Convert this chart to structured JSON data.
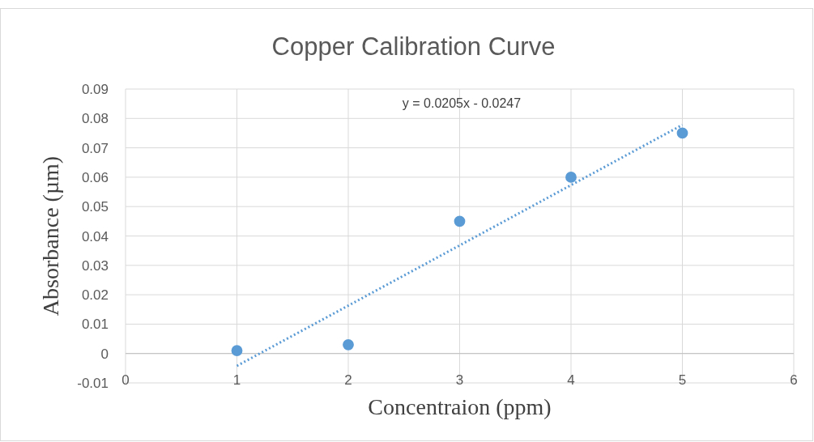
{
  "chart_data": {
    "type": "scatter",
    "title": "Copper Calibration Curve",
    "xlabel": "Concentraion (ppm)",
    "ylabel": "Absorbance (µm)",
    "annotations": [
      "y = 0.0205x - 0.0247"
    ],
    "x": [
      1,
      2,
      3,
      4,
      5
    ],
    "series": [
      {
        "color": "#5b9bd5",
        "marker": "circle",
        "values": [
          0.001,
          0.003,
          0.045,
          0.06,
          0.075
        ]
      },
      {
        "type": "line",
        "color": "#5b9bd5",
        "line_style": "dotted",
        "marker": "none",
        "x": [
          1,
          5
        ],
        "values": [
          -0.0042,
          0.0778
        ]
      }
    ],
    "xlim": [
      0,
      6
    ],
    "xticks": [
      0,
      1,
      2,
      3,
      4,
      5,
      6
    ],
    "ylim": [
      -0.01,
      0.09
    ],
    "yticks": [
      -0.01,
      0,
      0.01,
      0.02,
      0.03,
      0.04,
      0.05,
      0.06,
      0.07,
      0.08,
      0.09
    ],
    "grid": true
  }
}
